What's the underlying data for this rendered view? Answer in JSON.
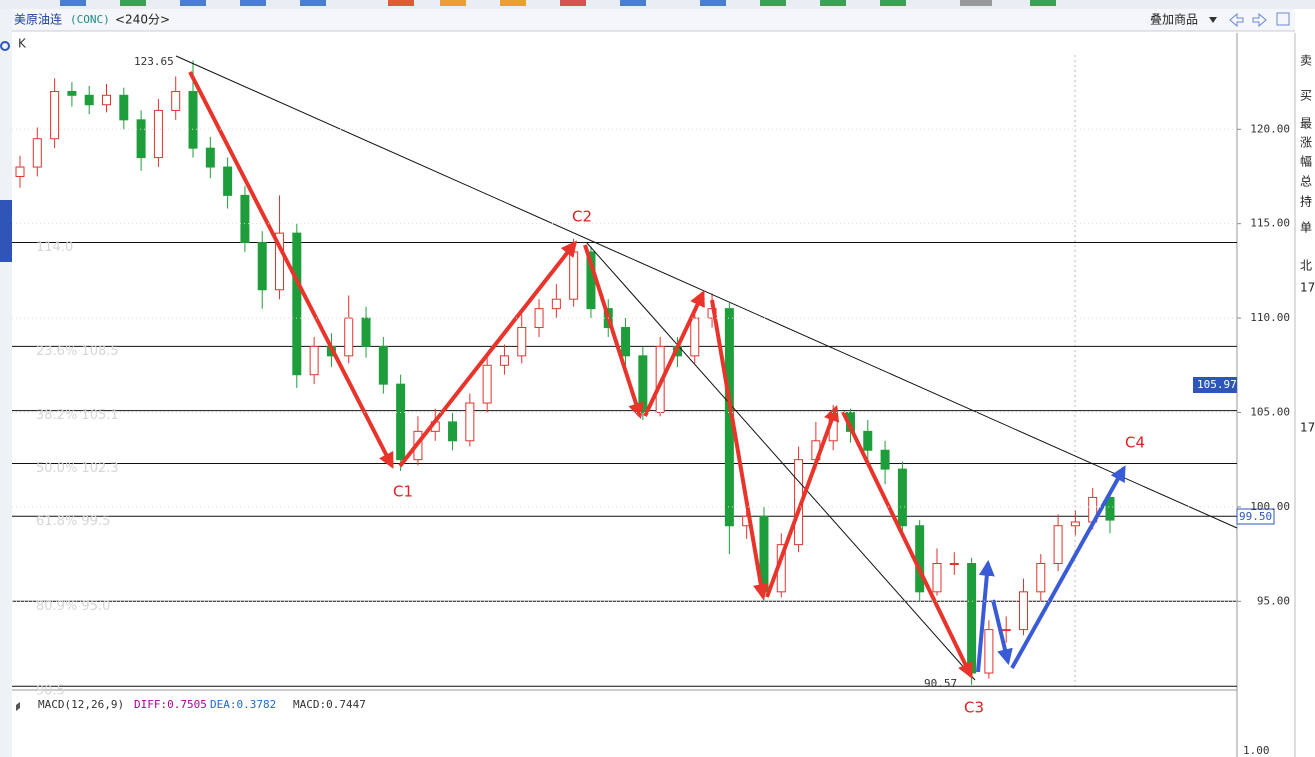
{
  "header": {
    "name": "美原油连",
    "code": "(CONC)",
    "period": "<240分>",
    "overlay": "叠加商品"
  },
  "chart_data": {
    "type": "candlestick",
    "label": "K",
    "ylim": [
      90.3,
      125.1
    ],
    "yticks": [
      {
        "value": 95,
        "label": "95.00"
      },
      {
        "value": 100,
        "label": "100.00"
      },
      {
        "value": 105,
        "label": "105.00"
      },
      {
        "value": 110,
        "label": "110.00"
      },
      {
        "value": 115,
        "label": "115.00"
      },
      {
        "value": 120,
        "label": "120.00"
      }
    ],
    "open": [
      117.5,
      118,
      119.5,
      122,
      121.8,
      121.3,
      121.8,
      120.5,
      118.5,
      121,
      122,
      119,
      118,
      116.5,
      114,
      111.5,
      114.5,
      107,
      108.5,
      108,
      110,
      108.5,
      106.5,
      102.5,
      104,
      104.5,
      103.5,
      105.5,
      107.5,
      108,
      109.5,
      110.5,
      111,
      113.5,
      110.5,
      109.5,
      108,
      105,
      108.5,
      108,
      110,
      110.5,
      99,
      99.5,
      95.5,
      98,
      102.5,
      103.5,
      105,
      104,
      103,
      102,
      99,
      95.5,
      97,
      97,
      91.2,
      93.5,
      93.5,
      95.5,
      97,
      99,
      99.2,
      100.5
    ],
    "high": [
      118.6,
      120.1,
      122.7,
      122.5,
      122.3,
      122.4,
      122.2,
      121,
      121.6,
      122.8,
      123.65,
      119.6,
      118.5,
      117,
      114.6,
      116.5,
      115,
      109,
      109.2,
      111.2,
      110.6,
      109,
      107,
      104.8,
      105.2,
      105,
      106,
      108,
      108.6,
      110.2,
      111,
      111.8,
      114.2,
      113.8,
      111,
      110,
      108.5,
      109,
      109,
      110.6,
      111.3,
      110.8,
      100.5,
      100,
      98.6,
      103.2,
      104.5,
      105.4,
      105.2,
      104.6,
      103.5,
      102.4,
      99.3,
      97.8,
      97.6,
      97.3,
      94,
      94.2,
      96.2,
      97.5,
      99.6,
      99.8,
      101,
      100.8
    ],
    "low": [
      116.9,
      117.5,
      119,
      121.2,
      120.8,
      120.9,
      120,
      117.8,
      118,
      120.5,
      118.5,
      117.4,
      115.8,
      113.5,
      110.5,
      111,
      106.3,
      106.5,
      107.4,
      107.6,
      107.9,
      106,
      101.9,
      102.2,
      103.5,
      103,
      103.2,
      105,
      107,
      107.6,
      109,
      110,
      110.6,
      110,
      109,
      107.4,
      104.6,
      104.8,
      107.4,
      107.6,
      109.5,
      97.5,
      98.3,
      95,
      95.2,
      97.6,
      102,
      103,
      103.4,
      102.5,
      101.2,
      98.6,
      95,
      95.3,
      96.4,
      90.57,
      90.9,
      92.8,
      93.2,
      95,
      96.6,
      98.5,
      98.8,
      98.6
    ],
    "close": [
      118,
      119.5,
      122,
      121.8,
      121.3,
      121.8,
      120.5,
      118.5,
      121,
      122,
      119,
      118,
      116.5,
      114,
      111.5,
      114.5,
      107,
      108.5,
      108,
      110,
      108.5,
      106.5,
      102.5,
      104,
      104.5,
      103.5,
      105.5,
      107.5,
      108,
      109.5,
      110.5,
      111,
      113.5,
      110.5,
      109.5,
      108,
      105,
      108.5,
      108,
      110,
      110.5,
      99,
      99.5,
      95.5,
      98,
      102.5,
      103.5,
      105,
      104,
      103,
      102,
      99,
      95.5,
      97,
      97,
      91.2,
      93.5,
      93.5,
      95.5,
      97,
      99,
      99.2,
      100.5,
      99.3
    ],
    "up_color": "#e5322d",
    "down_color": "#1e9e3a",
    "levels": [
      {
        "value": 114,
        "label": "114.0"
      },
      {
        "value": 108.5,
        "label": "23.6% 108.5"
      },
      {
        "value": 105.1,
        "label": "38.2% 105.1"
      },
      {
        "value": 102.3,
        "label": "50.0% 102.3"
      },
      {
        "value": 99.5,
        "label": "61.8% 99.5"
      },
      {
        "value": 95.0,
        "label": "80.9% 95.0"
      },
      {
        "value": 90.5,
        "label": "90.5"
      }
    ],
    "annotations": [
      "123.65",
      "90.57",
      "C1",
      "C2",
      "C3",
      "C4",
      "105.97",
      "99.50"
    ]
  },
  "macd": {
    "title": "MACD(12,26,9)",
    "diff": "DIFF:0.7505",
    "dea": "DEA:0.3782",
    "macd": "MACD:0.7447",
    "tick": "1.00"
  },
  "panel": [
    "卖",
    "买",
    "最",
    "涨",
    "幅",
    "总",
    "持",
    "单",
    "北",
    "17",
    "17"
  ]
}
